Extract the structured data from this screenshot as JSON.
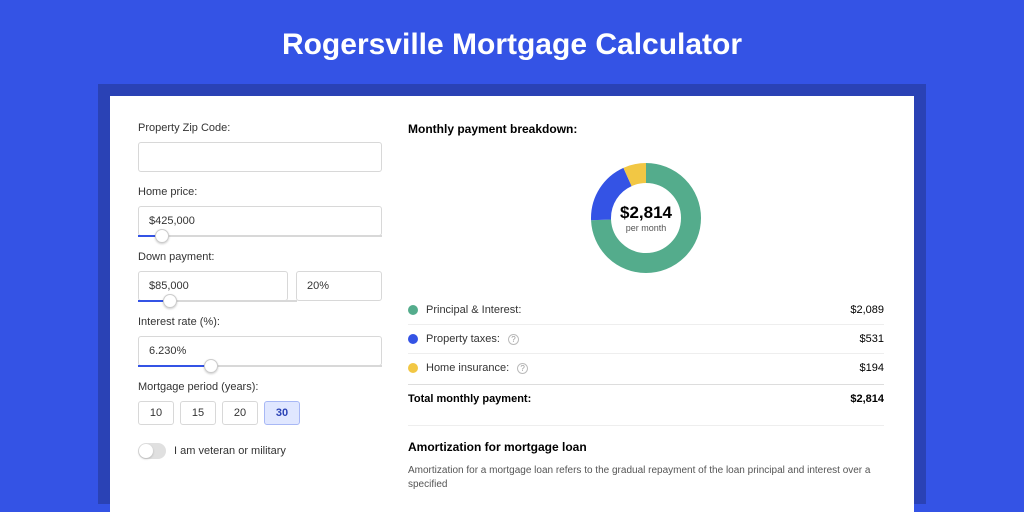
{
  "title": "Rogersville Mortgage Calculator",
  "colors": {
    "page_bg": "#3453e5",
    "card_shadow": "#2a42b5",
    "card_bg": "#ffffff",
    "accent": "#3453e5",
    "donut_principal": "#54ac8c",
    "donut_taxes": "#3453e5",
    "donut_insurance": "#f2c744"
  },
  "form": {
    "zip": {
      "label": "Property Zip Code:",
      "value": ""
    },
    "home_price": {
      "label": "Home price:",
      "value": "$425,000",
      "slider_pct": 10
    },
    "down_payment": {
      "label": "Down payment:",
      "amount": "$85,000",
      "percent": "20%",
      "slider_pct": 20
    },
    "interest": {
      "label": "Interest rate (%):",
      "value": "6.230%",
      "slider_pct": 30
    },
    "period": {
      "label": "Mortgage period (years):",
      "options": [
        "10",
        "15",
        "20",
        "30"
      ],
      "active": "30"
    },
    "veteran": {
      "label": "I am veteran or military",
      "on": false
    }
  },
  "breakdown": {
    "heading": "Monthly payment breakdown:",
    "center_amount": "$2,814",
    "center_sub": "per month",
    "items": [
      {
        "label": "Principal & Interest:",
        "value": "$2,089",
        "color": "#54ac8c",
        "pct": 74.2,
        "help": false
      },
      {
        "label": "Property taxes:",
        "value": "$531",
        "color": "#3453e5",
        "pct": 18.9,
        "help": true
      },
      {
        "label": "Home insurance:",
        "value": "$194",
        "color": "#f2c744",
        "pct": 6.9,
        "help": true
      }
    ],
    "total_label": "Total monthly payment:",
    "total_value": "$2,814"
  },
  "amortization": {
    "heading": "Amortization for mortgage loan",
    "text": "Amortization for a mortgage loan refers to the gradual repayment of the loan principal and interest over a specified"
  }
}
